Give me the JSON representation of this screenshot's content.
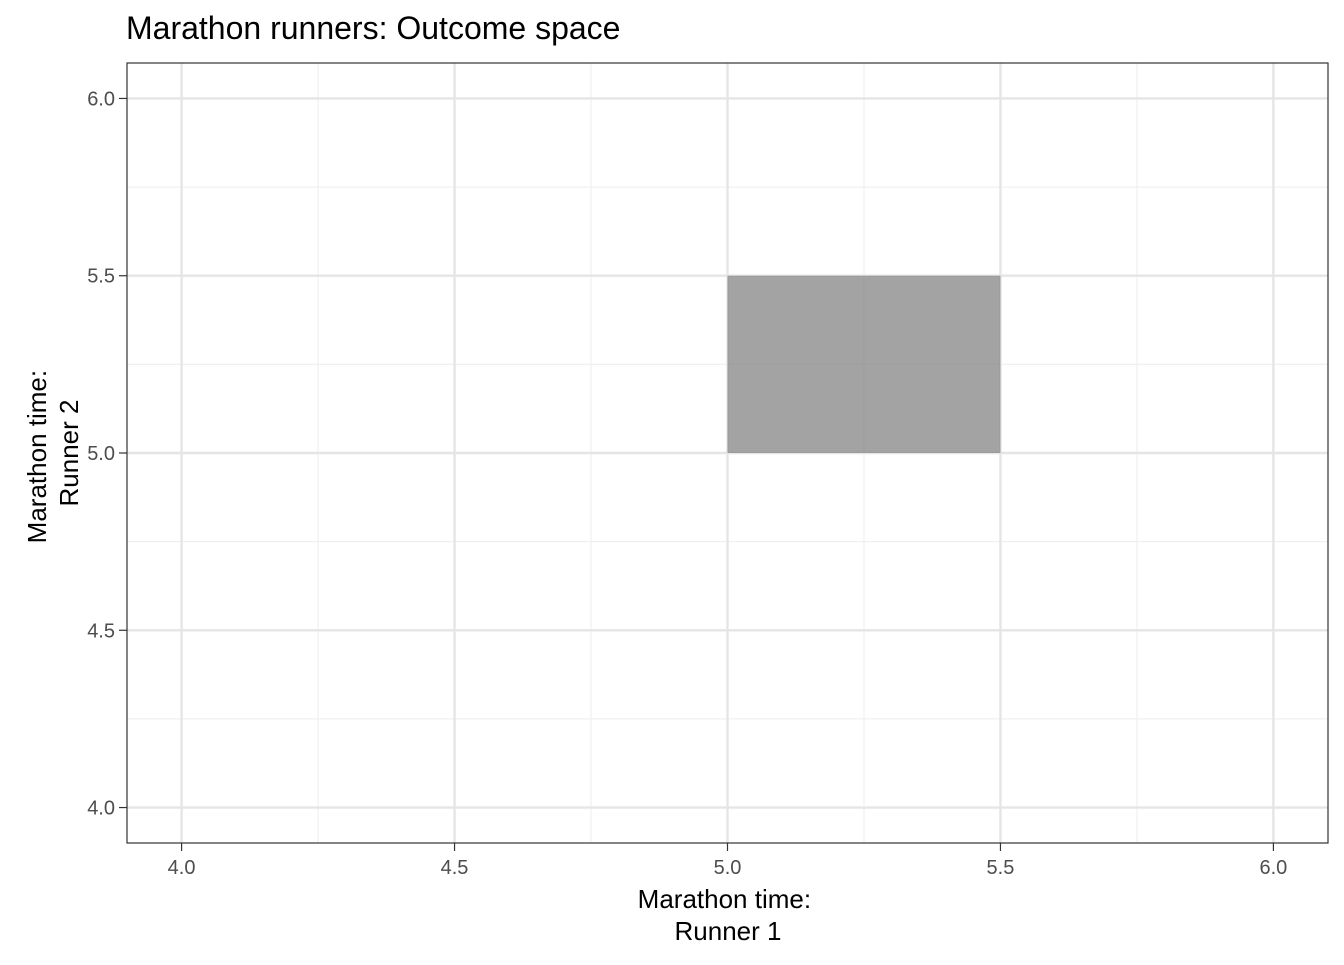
{
  "chart_data": {
    "type": "area",
    "title": "Marathon runners: Outcome space",
    "xlabel_lines": [
      "Marathon time:",
      "Runner 1"
    ],
    "ylabel_lines": [
      "Marathon time:",
      "Runner 2"
    ],
    "xlim": [
      3.9,
      6.1
    ],
    "ylim": [
      3.9,
      6.1
    ],
    "x_ticks": [
      4.0,
      4.5,
      5.0,
      5.5,
      6.0
    ],
    "y_ticks": [
      4.0,
      4.5,
      5.0,
      5.5,
      6.0
    ],
    "x_tick_labels": [
      "4.0",
      "4.5",
      "5.0",
      "5.5",
      "6.0"
    ],
    "y_tick_labels": [
      "4.0",
      "4.5",
      "5.0",
      "5.5",
      "6.0"
    ],
    "x_minor_ticks": [
      4.25,
      4.75,
      5.25,
      5.75
    ],
    "y_minor_ticks": [
      4.25,
      4.75,
      5.25,
      5.75
    ],
    "grid": true,
    "legend": "none",
    "shaded_region": {
      "xmin": 5.0,
      "xmax": 5.5,
      "ymin": 5.0,
      "ymax": 5.5,
      "fill": "#808080",
      "opacity": 0.72
    },
    "colors": {
      "background": "#ffffff",
      "panel_border": "#333333",
      "major_grid": "#e5e5e5",
      "minor_grid": "#f0f0f0",
      "tick_text": "#4d4d4d",
      "text": "#000000"
    }
  }
}
